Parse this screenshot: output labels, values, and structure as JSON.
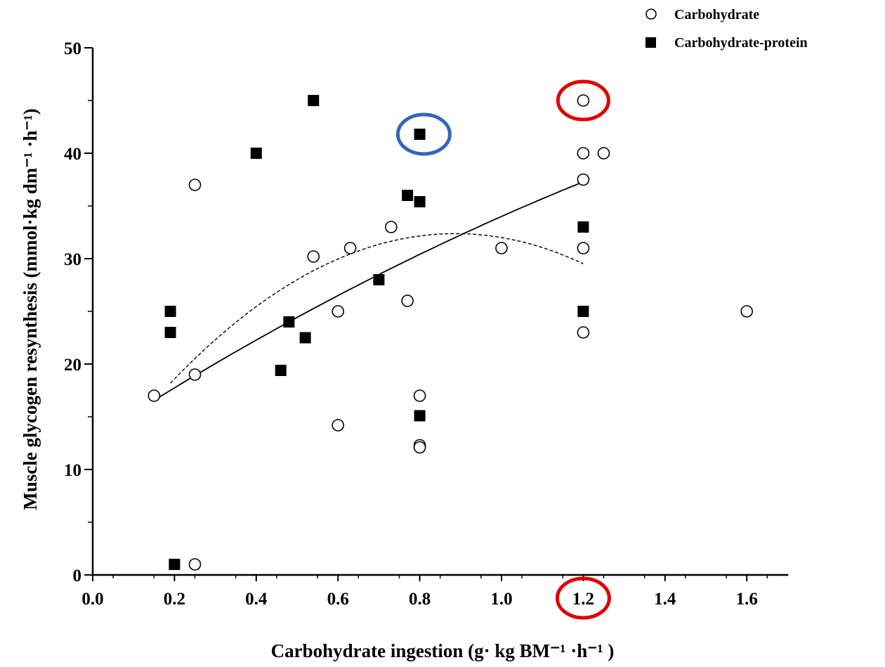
{
  "chart_data": {
    "type": "scatter",
    "title": "",
    "xlabel": "Carbohydrate ingestion (g· kg BM⁻¹ ·h⁻¹ )",
    "ylabel": "Muscle glycogen resynthesis (mmol·kg dm⁻¹ ·h⁻¹)",
    "xlim": [
      0.0,
      1.7
    ],
    "ylim": [
      0,
      50
    ],
    "xticks": [
      "0.0",
      "0.2",
      "0.4",
      "0.6",
      "0.8",
      "1.0",
      "1.2",
      "1.4",
      "1.6"
    ],
    "yticks": [
      "0",
      "10",
      "20",
      "30",
      "40",
      "50"
    ],
    "grid": false,
    "legend_position": "top-right",
    "series": [
      {
        "name": "Carbohydrate",
        "marker": "open-circle",
        "color": "#000000",
        "points": [
          [
            0.15,
            17
          ],
          [
            0.25,
            37
          ],
          [
            0.25,
            19
          ],
          [
            0.25,
            1
          ],
          [
            0.54,
            30.2
          ],
          [
            0.6,
            25
          ],
          [
            0.6,
            14.2
          ],
          [
            0.63,
            31
          ],
          [
            0.73,
            33
          ],
          [
            0.77,
            26
          ],
          [
            0.8,
            17
          ],
          [
            0.8,
            12.3
          ],
          [
            0.8,
            12.1
          ],
          [
            1.0,
            31
          ],
          [
            1.2,
            45
          ],
          [
            1.2,
            40
          ],
          [
            1.2,
            37.5
          ],
          [
            1.2,
            31
          ],
          [
            1.2,
            23
          ],
          [
            1.25,
            40
          ],
          [
            1.6,
            25
          ]
        ]
      },
      {
        "name": "Carbohydrate-protein",
        "marker": "filled-square",
        "color": "#000000",
        "points": [
          [
            0.19,
            25
          ],
          [
            0.19,
            23
          ],
          [
            0.2,
            1
          ],
          [
            0.4,
            40
          ],
          [
            0.46,
            19.4
          ],
          [
            0.48,
            24
          ],
          [
            0.52,
            22.5
          ],
          [
            0.54,
            45
          ],
          [
            0.7,
            28
          ],
          [
            0.77,
            36
          ],
          [
            0.8,
            35.4
          ],
          [
            0.8,
            41.8
          ],
          [
            0.8,
            15.1
          ],
          [
            1.2,
            33
          ],
          [
            1.2,
            25
          ]
        ]
      }
    ],
    "trend_lines": [
      {
        "style": "solid",
        "color": "#000000",
        "x_range": [
          0.15,
          1.2
        ],
        "coefficients": [
          12.9,
          25.0,
          -3.9
        ]
      },
      {
        "style": "dashed",
        "color": "#000000",
        "x_range": [
          0.19,
          1.2
        ],
        "coefficients": [
          9.4,
          51.8,
          -29.2
        ]
      }
    ],
    "highlights": [
      {
        "shape": "ellipse",
        "color": "#e00000",
        "target": "point",
        "x": 1.2,
        "y": 45
      },
      {
        "shape": "ellipse",
        "color": "#3366bb",
        "target": "point",
        "x": 0.81,
        "y": 41.8
      },
      {
        "shape": "ellipse",
        "color": "#e00000",
        "target": "x-tick",
        "label": "1.2"
      }
    ]
  }
}
